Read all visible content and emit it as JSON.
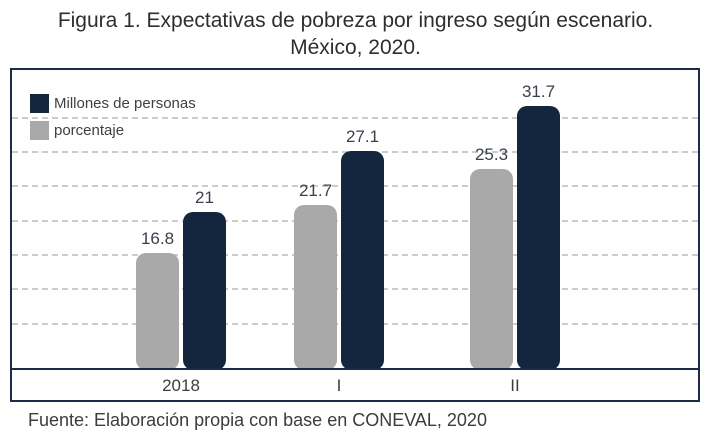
{
  "title": "Figura 1. Expectativas de pobreza por ingreso según escenario. México, 2020.",
  "source": "Fuente: Elaboración propia con base en CONEVAL, 2020",
  "chart_data": {
    "type": "bar",
    "title": "Figura 1. Expectativas de pobreza por ingreso según escenario. México, 2020.",
    "categories": [
      "2018",
      "I",
      "II"
    ],
    "series": [
      {
        "name": "Millones de personas",
        "color": "#14253e",
        "values": [
          21,
          27.1,
          31.7
        ]
      },
      {
        "name": "porcentaje",
        "color": "#a9a9a9",
        "values": [
          16.8,
          21.7,
          25.3
        ]
      }
    ],
    "value_labels": true,
    "legend_position": "top-left",
    "grid": "dashed-horizontal",
    "xlabel": "",
    "ylabel": "",
    "ylim": [
      5,
      35
    ]
  },
  "colors": {
    "navy": "#14253e",
    "gray": "#a9a9a9",
    "frame": "#1c2b47",
    "gridline": "#cccccc"
  }
}
